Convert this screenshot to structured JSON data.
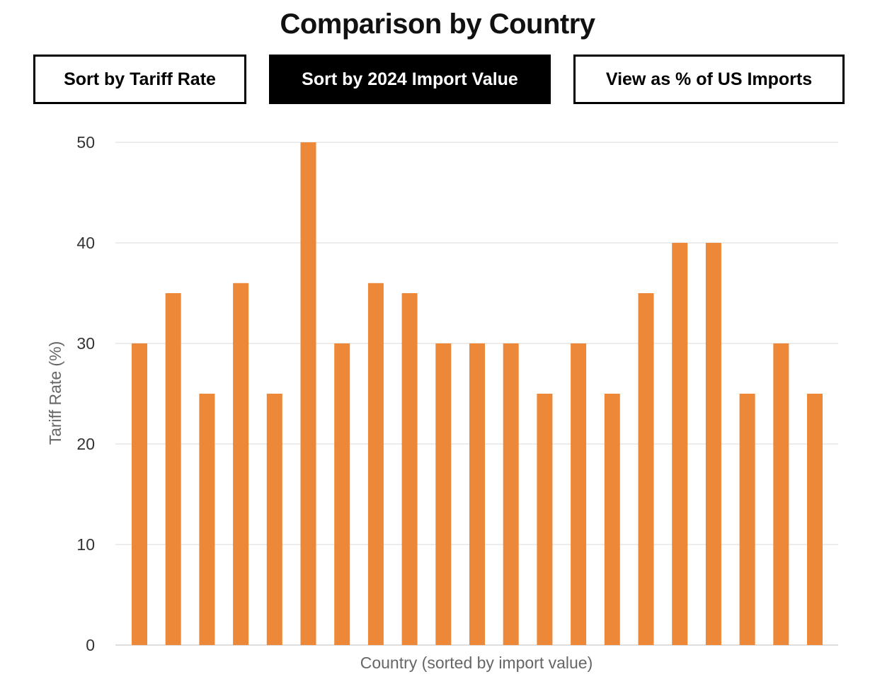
{
  "header": {
    "title": "Comparison by Country"
  },
  "controls": {
    "buttons": [
      {
        "label": "Sort by Tariff Rate",
        "active": false
      },
      {
        "label": "Sort by 2024 Import Value",
        "active": true
      },
      {
        "label": "View as % of US Imports",
        "active": false
      }
    ]
  },
  "colors": {
    "bar": "#ec8838",
    "grid": "#e6e6e6",
    "axis_text": "#333333",
    "label_text": "#666666",
    "active_button_bg": "#000000"
  },
  "chart_data": {
    "type": "bar",
    "title": "Comparison by Country",
    "xlabel": "Country (sorted by import value)",
    "ylabel": "Tariff Rate (%)",
    "ylim": [
      0,
      50
    ],
    "yticks": [
      0,
      10,
      20,
      30,
      40,
      50
    ],
    "grid": true,
    "values": [
      30,
      35,
      25,
      36,
      25,
      50,
      30,
      36,
      35,
      30,
      30,
      30,
      25,
      30,
      25,
      35,
      40,
      40,
      25,
      30,
      25
    ]
  }
}
